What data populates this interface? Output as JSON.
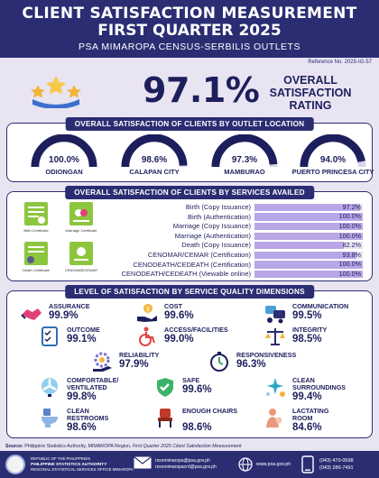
{
  "header": {
    "title_line1": "CLIENT SATISFACTION MEASUREMENT",
    "title_line2": "FIRST QUARTER 2025",
    "subtitle": "PSA MIMAROPA CENSUS-SERBILIS OUTLETS"
  },
  "reference": "Reference No. 2025-IG-57",
  "overall": {
    "value": "97.1%",
    "label_line1": "OVERALL",
    "label_line2": "SATISFACTION",
    "label_line3": "RATING"
  },
  "outlets": {
    "title": "OVERALL SATISFACTION OF CLIENTS BY OUTLET LOCATION",
    "items": [
      {
        "name": "ODIONGAN",
        "value": "100.0%",
        "pct": 100.0
      },
      {
        "name": "CALAPAN CITY",
        "value": "98.6%",
        "pct": 98.6
      },
      {
        "name": "MAMBURAO",
        "value": "97.3%",
        "pct": 97.3
      },
      {
        "name": "PUERTO PRINCESA CITY",
        "value": "94.0%",
        "pct": 94.0
      }
    ]
  },
  "services": {
    "title": "OVERALL SATISFACTION OF CLIENTS BY SERVICES AVAILED",
    "doc_captions": [
      "Birth Certificate",
      "Marriage Certificate",
      "Death Certificate",
      "CENOMAR/CEMAR"
    ],
    "items": [
      {
        "label": "Birth (Copy Issuance)",
        "value": "97.2%",
        "pct": 97.2
      },
      {
        "label": "Birth (Authentication)",
        "value": "100.0%",
        "pct": 100.0
      },
      {
        "label": "Marriage (Copy Issuance)",
        "value": "100.0%",
        "pct": 100.0
      },
      {
        "label": "Marriage (Authentication)",
        "value": "100.0%",
        "pct": 100.0
      },
      {
        "label": "Death (Copy Issuance)",
        "value": "82.2%",
        "pct": 82.2
      },
      {
        "label": "CENOMAR/CEMAR (Certification)",
        "value": "93.8%",
        "pct": 93.8
      },
      {
        "label": "CENODEATH/CEDEATH (Certification)",
        "value": "100.0%",
        "pct": 100.0
      },
      {
        "label": "CENODEATH/CEDEATH (Viewable online)",
        "value": "100.0%",
        "pct": 100.0
      }
    ]
  },
  "dimensions": {
    "title": "LEVEL OF SATISFACTION BY SERVICE QUALITY DIMENSIONS",
    "items": [
      {
        "label": "ASSURANCE",
        "value": "99.9%",
        "icon": "handshake-icon",
        "color": "#e0407a"
      },
      {
        "label": "COST",
        "value": "99.6%",
        "icon": "money-hand-icon",
        "color": "#f2b53a"
      },
      {
        "label": "COMMUNICATION",
        "value": "99.5%",
        "icon": "communication-icon",
        "color": "#4a9fd8"
      },
      {
        "label": "OUTCOME",
        "value": "99.1%",
        "icon": "checklist-icon",
        "color": "#2f6fb5"
      },
      {
        "label": "ACCESS/FACILITIES",
        "value": "99.0%",
        "icon": "wheelchair-icon",
        "color": "#e04545"
      },
      {
        "label": "INTEGRITY",
        "value": "98.5%",
        "icon": "scales-icon",
        "color": "#2b2d73"
      },
      {
        "label": "RELIABILITY",
        "value": "97.9%",
        "icon": "gear-hand-icon",
        "color": "#7b6fd0"
      },
      {
        "label": "RESPONSIVENESS",
        "value": "96.3%",
        "icon": "stopwatch-icon",
        "color": "#3ba56a"
      },
      {
        "label": "COMFORTABLE/ VENTILATED",
        "value": "99.8%",
        "icon": "fan-icon",
        "color": "#8fd0ee"
      },
      {
        "label": "SAFE",
        "value": "99.6%",
        "icon": "shield-check-icon",
        "color": "#3bb36a"
      },
      {
        "label": "CLEAN SURROUNDINGS",
        "value": "99.4%",
        "icon": "sparkle-icon",
        "color": "#2aa6c9"
      },
      {
        "label": "CLEAN RESTROOMS",
        "value": "98.6%",
        "icon": "toilet-icon",
        "color": "#5a84c9"
      },
      {
        "label": "ENOUGH CHAIRS",
        "value": "98.6%",
        "icon": "chair-icon",
        "color": "#c0392b"
      },
      {
        "label": "LACTATING ROOM",
        "value": "84.6%",
        "icon": "mother-baby-icon",
        "color": "#e89a7a"
      }
    ]
  },
  "source": {
    "prefix": "Source:",
    "text": " Philippine Statistics Authority, MIMAROPA Region, ",
    "italic": "First Quarter 2025 Client Satisfaction Measurement"
  },
  "footer": {
    "org_line1": "REPUBLIC OF THE PHILIPPINES",
    "org_line2": "PHILIPPINE STATISTICS AUTHORITY",
    "org_line3": "REGIONAL STATISTICAL SERVICES OFFICE MIMAROPA",
    "email1": "rssomimaropa@psa.gov.ph",
    "email2": "rssomimaropacrd@psa.gov.ph",
    "website": "www.psa.gov.ph",
    "phone1": "(043) 470-0598",
    "phone2": "(043) 286-7491"
  }
}
